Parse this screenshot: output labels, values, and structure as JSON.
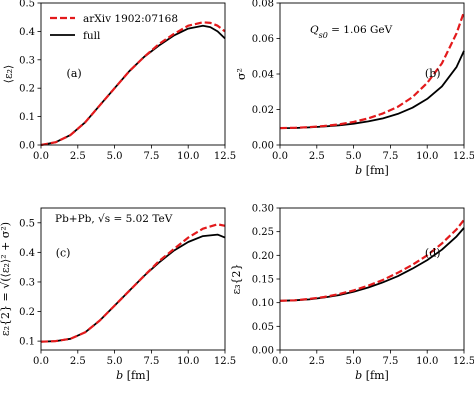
{
  "legend": [
    {
      "label": "arXiv 1902:07168",
      "color": "#e31a1c",
      "dash": "dashed"
    },
    {
      "label": "full",
      "color": "#000000",
      "dash": "solid"
    }
  ],
  "chart_data": [
    {
      "id": "a",
      "type": "line",
      "panel_label": "(a)",
      "xlabel": "",
      "ylabel": "⟨ε₂⟩",
      "xlim": [
        0,
        12.5
      ],
      "ylim": [
        0,
        0.5
      ],
      "xticks": [
        0.0,
        2.5,
        5.0,
        7.5,
        10.0,
        12.5
      ],
      "xtick_labels": [
        "0.0",
        "2.5",
        "5.0",
        "7.5",
        "10.0",
        "12.5"
      ],
      "yticks": [
        0.0,
        0.1,
        0.2,
        0.3,
        0.4,
        0.5
      ],
      "ytick_labels": [
        "0.0",
        "0.1",
        "0.2",
        "0.3",
        "0.4",
        "0.5"
      ],
      "legend_position": "top-left",
      "series": [
        {
          "name": "arXiv 1902:07168",
          "color": "#e31a1c",
          "dash": "dashed",
          "x": [
            0,
            1,
            2,
            3,
            4,
            5,
            6,
            7,
            8,
            9,
            10,
            11,
            11.5,
            12,
            12.5
          ],
          "y": [
            0,
            0.01,
            0.035,
            0.08,
            0.14,
            0.2,
            0.26,
            0.31,
            0.355,
            0.39,
            0.42,
            0.432,
            0.43,
            0.42,
            0.4
          ]
        },
        {
          "name": "full",
          "color": "#000000",
          "dash": "solid",
          "x": [
            0,
            1,
            2,
            3,
            4,
            5,
            6,
            7,
            8,
            9,
            10,
            11,
            11.5,
            12,
            12.5
          ],
          "y": [
            0,
            0.01,
            0.035,
            0.08,
            0.14,
            0.2,
            0.26,
            0.31,
            0.35,
            0.385,
            0.41,
            0.42,
            0.415,
            0.4,
            0.375
          ]
        }
      ]
    },
    {
      "id": "b",
      "type": "line",
      "panel_label": "(b)",
      "annotation": "Q_{s0} = 1.06 GeV",
      "xlabel": "b [fm]",
      "ylabel": "σ²",
      "xlim": [
        0,
        12.5
      ],
      "ylim": [
        0,
        0.08
      ],
      "xticks": [
        0.0,
        2.5,
        5.0,
        7.5,
        10.0,
        12.5
      ],
      "xtick_labels": [
        "0.0",
        "2.5",
        "5.0",
        "7.5",
        "10.0",
        "12.5"
      ],
      "yticks": [
        0.0,
        0.02,
        0.04,
        0.06,
        0.08
      ],
      "ytick_labels": [
        "0.00",
        "0.02",
        "0.04",
        "0.06",
        "0.08"
      ],
      "series": [
        {
          "name": "arXiv 1902:07168",
          "color": "#e31a1c",
          "dash": "dashed",
          "x": [
            0,
            1,
            2,
            3,
            4,
            5,
            6,
            7,
            8,
            9,
            10,
            11,
            12,
            12.5
          ],
          "y": [
            0.0095,
            0.0097,
            0.0101,
            0.0107,
            0.0116,
            0.013,
            0.015,
            0.0178,
            0.0215,
            0.027,
            0.035,
            0.046,
            0.063,
            0.075
          ]
        },
        {
          "name": "full",
          "color": "#000000",
          "dash": "solid",
          "x": [
            0,
            1,
            2,
            3,
            4,
            5,
            6,
            7,
            8,
            9,
            10,
            11,
            12,
            12.5
          ],
          "y": [
            0.0095,
            0.0096,
            0.0099,
            0.0104,
            0.0111,
            0.012,
            0.0133,
            0.015,
            0.0175,
            0.021,
            0.026,
            0.033,
            0.044,
            0.053
          ]
        }
      ]
    },
    {
      "id": "c",
      "type": "line",
      "panel_label": "(c)",
      "annotation": "Pb+Pb, √s = 5.02 TeV",
      "xlabel": "b [fm]",
      "ylabel": "ε₂{2} = √(⟨ε₂⟩² + σ²)",
      "xlim": [
        0,
        12.5
      ],
      "ylim": [
        0.07,
        0.55
      ],
      "xticks": [
        0.0,
        2.5,
        5.0,
        7.5,
        10.0,
        12.5
      ],
      "xtick_labels": [
        "0.0",
        "2.5",
        "5.0",
        "7.5",
        "10.0",
        "12.5"
      ],
      "yticks": [
        0.1,
        0.2,
        0.3,
        0.4,
        0.5
      ],
      "ytick_labels": [
        "0.1",
        "0.2",
        "0.3",
        "0.4",
        "0.5"
      ],
      "series": [
        {
          "name": "arXiv 1902:07168",
          "color": "#e31a1c",
          "dash": "dashed",
          "x": [
            0,
            1,
            2,
            3,
            4,
            5,
            6,
            7,
            8,
            9,
            10,
            11,
            12,
            12.5
          ],
          "y": [
            0.098,
            0.1,
            0.108,
            0.13,
            0.17,
            0.22,
            0.27,
            0.32,
            0.37,
            0.41,
            0.45,
            0.48,
            0.495,
            0.49
          ]
        },
        {
          "name": "full",
          "color": "#000000",
          "dash": "solid",
          "x": [
            0,
            1,
            2,
            3,
            4,
            5,
            6,
            7,
            8,
            9,
            10,
            11,
            12,
            12.5
          ],
          "y": [
            0.098,
            0.1,
            0.108,
            0.13,
            0.17,
            0.22,
            0.27,
            0.32,
            0.365,
            0.405,
            0.435,
            0.455,
            0.46,
            0.45
          ]
        }
      ]
    },
    {
      "id": "d",
      "type": "line",
      "panel_label": "(d)",
      "xlabel": "b [fm]",
      "ylabel": "ε₃{2}",
      "xlim": [
        0,
        12.5
      ],
      "ylim": [
        0,
        0.3
      ],
      "xticks": [
        0.0,
        2.5,
        5.0,
        7.5,
        10.0,
        12.5
      ],
      "xtick_labels": [
        "0.0",
        "2.5",
        "5.0",
        "7.5",
        "10.0",
        "12.5"
      ],
      "yticks": [
        0.0,
        0.05,
        0.1,
        0.15,
        0.2,
        0.25,
        0.3
      ],
      "ytick_labels": [
        "0.00",
        "0.05",
        "0.10",
        "0.15",
        "0.20",
        "0.25",
        "0.30"
      ],
      "series": [
        {
          "name": "arXiv 1902:07168",
          "color": "#e31a1c",
          "dash": "dashed",
          "x": [
            0,
            1,
            2,
            3,
            4,
            5,
            6,
            7,
            8,
            9,
            10,
            11,
            12,
            12.5
          ],
          "y": [
            0.104,
            0.105,
            0.108,
            0.112,
            0.118,
            0.126,
            0.136,
            0.148,
            0.163,
            0.18,
            0.2,
            0.225,
            0.255,
            0.275
          ]
        },
        {
          "name": "full",
          "color": "#000000",
          "dash": "solid",
          "x": [
            0,
            1,
            2,
            3,
            4,
            5,
            6,
            7,
            8,
            9,
            10,
            11,
            12,
            12.5
          ],
          "y": [
            0.104,
            0.105,
            0.107,
            0.111,
            0.116,
            0.123,
            0.132,
            0.143,
            0.156,
            0.172,
            0.19,
            0.212,
            0.24,
            0.258
          ]
        }
      ]
    }
  ]
}
